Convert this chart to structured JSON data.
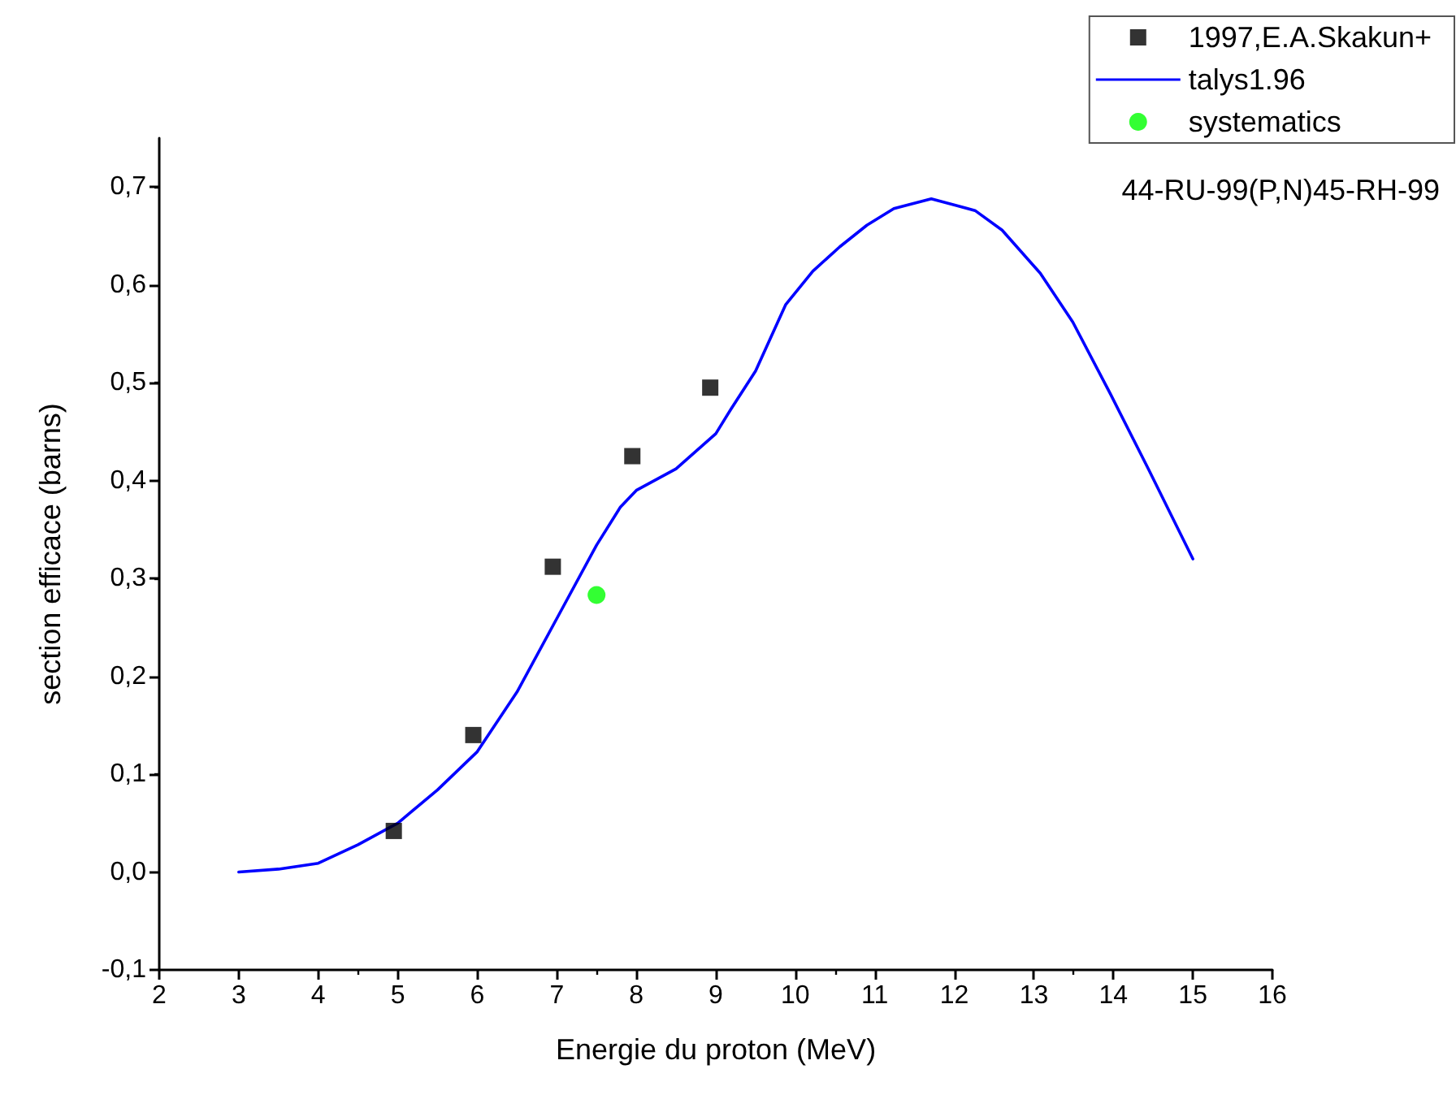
{
  "chart_data": {
    "type": "scatter",
    "xlabel": "Energie du proton (MeV)",
    "ylabel": "section efficace (barns)",
    "annotations": [
      "44-RU-99(P,N)45-RH-99"
    ],
    "xlim": [
      2,
      16
    ],
    "xticks": [
      2,
      3,
      4,
      5,
      6,
      7,
      8,
      9,
      10,
      11,
      12,
      13,
      14,
      15,
      16
    ],
    "ylim": [
      -0.1,
      0.75
    ],
    "yticks": [
      {
        "value": -0.1,
        "label": "-0,1"
      },
      {
        "value": 0,
        "label": "0,0"
      },
      {
        "value": 0.1,
        "label": "0,1"
      },
      {
        "value": 0.2,
        "label": "0,2"
      },
      {
        "value": 0.3,
        "label": "0,3"
      },
      {
        "value": 0.4,
        "label": "0,4"
      },
      {
        "value": 0.5,
        "label": "0,5"
      },
      {
        "value": 0.6,
        "label": "0,6"
      },
      {
        "value": 0.7,
        "label": "0,7"
      }
    ],
    "grid": false,
    "legend": "top right",
    "series": [
      {
        "name": "1997,E.A.Skakun+",
        "marker": "square",
        "color": "#000000",
        "x": [
          4.95,
          5.95,
          6.95,
          7.95,
          8.93
        ],
        "values": [
          0.042,
          0.14,
          0.312,
          0.425,
          0.495
        ]
      },
      {
        "name": "talys1.96",
        "type": "line",
        "marker": "none",
        "line_style": "solid",
        "color": "#0000ff",
        "x": [
          3,
          3.5,
          4,
          4.5,
          5,
          5.5,
          6,
          6.5,
          7,
          7.5,
          7.8,
          8,
          8.5,
          9,
          9.19,
          9.5,
          9.88,
          10.22,
          10.56,
          10.9,
          11.24,
          11.71,
          12.26,
          12.6,
          13.08,
          13.49,
          13.96,
          14.44,
          15
        ],
        "values": [
          0,
          0.003,
          0.009,
          0.028,
          0.05,
          0.084,
          0.123,
          0.184,
          0.259,
          0.334,
          0.373,
          0.39,
          0.412,
          0.448,
          0.473,
          0.512,
          0.58,
          0.614,
          0.639,
          0.661,
          0.678,
          0.688,
          0.676,
          0.656,
          0.612,
          0.562,
          0.489,
          0.412,
          0.32
        ]
      },
      {
        "name": "systematics",
        "marker": "circle",
        "color": "#00ff00",
        "x": [
          7.5
        ],
        "values": [
          0.283
        ]
      }
    ]
  }
}
